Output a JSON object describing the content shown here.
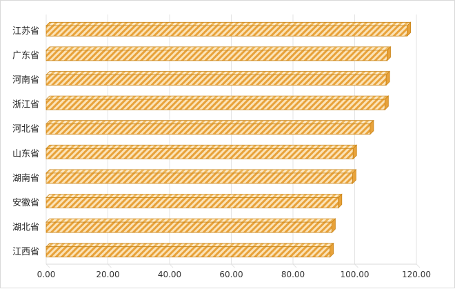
{
  "chart_data": {
    "type": "bar",
    "orientation": "horizontal",
    "style": "3d-hatched",
    "bar_color": "#E8A23A",
    "bar_edge_color": "#C98418",
    "categories": [
      "江苏省",
      "广东省",
      "河南省",
      "浙江省",
      "河北省",
      "山东省",
      "湖南省",
      "安徽省",
      "湖北省",
      "江西省"
    ],
    "values": [
      117.0,
      110.5,
      110.2,
      109.8,
      105.0,
      99.5,
      99.3,
      94.7,
      92.6,
      92.0
    ],
    "x_ticks": [
      "0.00",
      "20.00",
      "40.00",
      "60.00",
      "80.00",
      "100.00",
      "120.00"
    ],
    "xlim": [
      0,
      120
    ],
    "grid": "vertical",
    "legend": "none",
    "title": "",
    "xlabel": "",
    "ylabel": ""
  }
}
